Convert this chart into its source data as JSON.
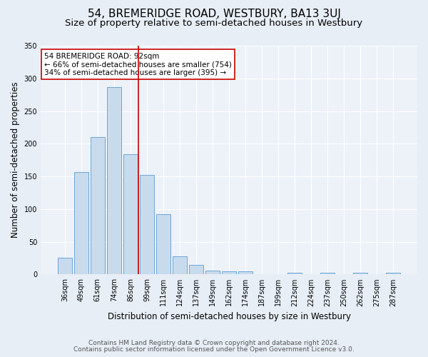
{
  "title": "54, BREMERIDGE ROAD, WESTBURY, BA13 3UJ",
  "subtitle": "Size of property relative to semi-detached houses in Westbury",
  "xlabel": "Distribution of semi-detached houses by size in Westbury",
  "ylabel": "Number of semi-detached properties",
  "categories": [
    "36sqm",
    "49sqm",
    "61sqm",
    "74sqm",
    "86sqm",
    "99sqm",
    "111sqm",
    "124sqm",
    "137sqm",
    "149sqm",
    "162sqm",
    "174sqm",
    "187sqm",
    "199sqm",
    "212sqm",
    "224sqm",
    "237sqm",
    "250sqm",
    "262sqm",
    "275sqm",
    "287sqm"
  ],
  "values": [
    25,
    157,
    210,
    287,
    184,
    152,
    92,
    28,
    15,
    6,
    5,
    5,
    0,
    0,
    2,
    0,
    3,
    0,
    2,
    0,
    2
  ],
  "bar_color": "#c8dbed",
  "bar_edge_color": "#5b9bd5",
  "vline_x": 4.5,
  "annotation_title": "54 BREMERIDGE ROAD: 92sqm",
  "annotation_line1": "← 66% of semi-detached houses are smaller (754)",
  "annotation_line2": "34% of semi-detached houses are larger (395) →",
  "annotation_box_color": "#ffffff",
  "annotation_box_edge_color": "#cc0000",
  "ylim": [
    0,
    350
  ],
  "yticks": [
    0,
    50,
    100,
    150,
    200,
    250,
    300,
    350
  ],
  "footer_line1": "Contains HM Land Registry data © Crown copyright and database right 2024.",
  "footer_line2": "Contains public sector information licensed under the Open Government Licence v3.0.",
  "bg_color": "#e8eef6",
  "plot_bg_color": "#edf2f9",
  "grid_color": "#ffffff",
  "title_fontsize": 11,
  "subtitle_fontsize": 9.5,
  "axis_label_fontsize": 8.5,
  "tick_fontsize": 7,
  "annotation_fontsize": 7.5,
  "footer_fontsize": 6.5
}
